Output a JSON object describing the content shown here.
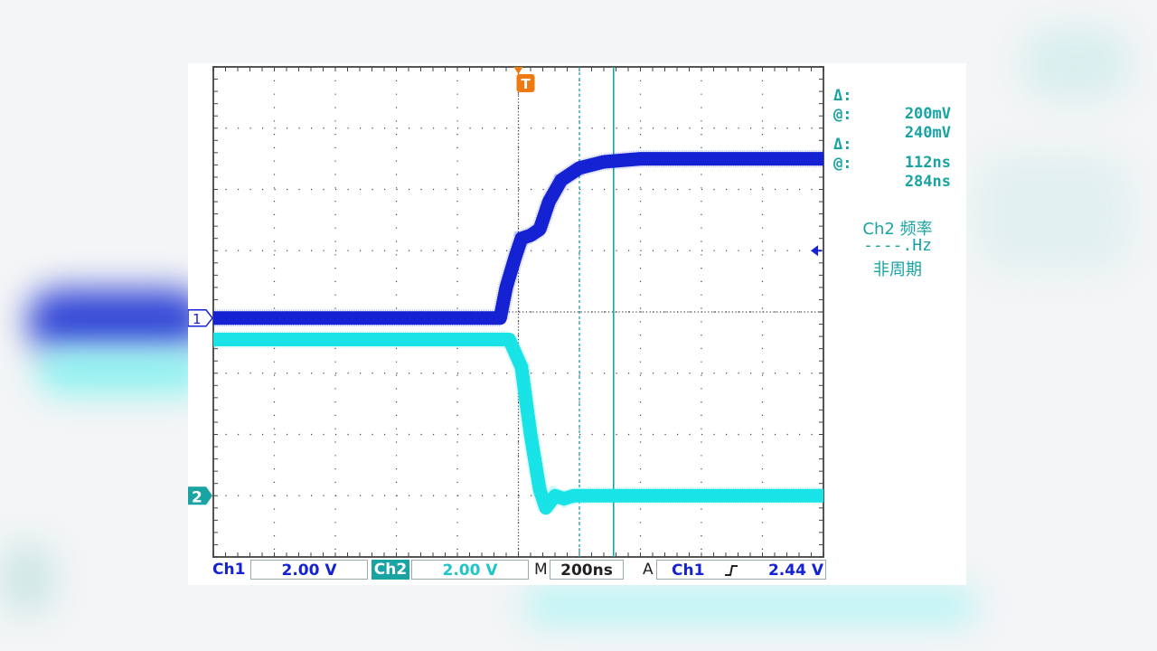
{
  "colors": {
    "ch1": "#1522d4",
    "ch2": "#19e3e6",
    "trigger": "#f07a12",
    "cursor": "#1aa3a3",
    "grid": "#444444",
    "frame": "#555555"
  },
  "trigger_marker": "T",
  "channel_markers": {
    "ch1": "1",
    "ch2": "2"
  },
  "readouts": {
    "volt_delta_sym": "Δ:",
    "volt_delta_val": "200mV",
    "volt_at_sym": "@:",
    "volt_at_val": "240mV",
    "time_delta_sym": "Δ:",
    "time_delta_val": "112ns",
    "time_at_sym": "@:",
    "time_at_val": "284ns"
  },
  "measure": {
    "title": "Ch2 频率",
    "value": "----.Hz",
    "status": "非周期"
  },
  "bottom_bar": {
    "ch1_label": "Ch1",
    "ch1_scale": "2.00 V",
    "ch2_label": "Ch2",
    "ch2_scale": "2.00 V",
    "m_label": "M",
    "timebase": "200ns",
    "a_label": "A",
    "trig_source": "Ch1",
    "trig_level": "2.44 V"
  },
  "chart_data": {
    "type": "line",
    "xlabel": "",
    "ylabel": "",
    "x_unit": "div",
    "y_unit": "div",
    "xlim": [
      0,
      10
    ],
    "ylim": [
      -4,
      4
    ],
    "grid": true,
    "series": [
      {
        "name": "Ch1",
        "x": [
          0,
          4.7,
          4.8,
          4.95,
          5.05,
          5.2,
          5.35,
          5.5,
          5.7,
          6.0,
          6.4,
          7.0,
          10
        ],
        "y": [
          -0.1,
          -0.1,
          0.4,
          0.9,
          1.2,
          1.25,
          1.35,
          1.8,
          2.15,
          2.35,
          2.45,
          2.5,
          2.5
        ]
      },
      {
        "name": "Ch2",
        "x": [
          0,
          4.7,
          4.85,
          5.05,
          5.2,
          5.35,
          5.45,
          5.6,
          5.75,
          5.9,
          6.2,
          10
        ],
        "y": [
          -0.45,
          -0.45,
          -0.45,
          -0.9,
          -2.0,
          -2.9,
          -3.2,
          -3.0,
          -3.05,
          -3.0,
          -3.0,
          -3.0
        ]
      }
    ],
    "cursors": {
      "x1_div": 6.0,
      "x2_div": 6.56
    }
  }
}
